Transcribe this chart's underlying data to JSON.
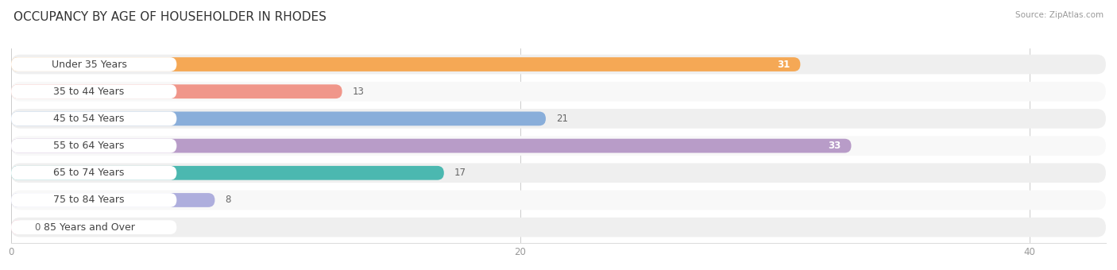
{
  "title": "OCCUPANCY BY AGE OF HOUSEHOLDER IN RHODES",
  "source": "Source: ZipAtlas.com",
  "categories": [
    "Under 35 Years",
    "35 to 44 Years",
    "45 to 54 Years",
    "55 to 64 Years",
    "65 to 74 Years",
    "75 to 84 Years",
    "85 Years and Over"
  ],
  "values": [
    31,
    13,
    21,
    33,
    17,
    8,
    0
  ],
  "bar_colors": [
    "#F5A855",
    "#F0968A",
    "#89AEDA",
    "#B89CC8",
    "#4BB8B0",
    "#AEAEDD",
    "#F4AABF"
  ],
  "xlim_max": 43,
  "xticks": [
    0,
    20,
    40
  ],
  "title_fontsize": 11,
  "label_fontsize": 9,
  "value_fontsize": 8.5,
  "background_color": "#FFFFFF",
  "row_bg_color": "#EFEFEF",
  "row_bg_light": "#F8F8F8"
}
